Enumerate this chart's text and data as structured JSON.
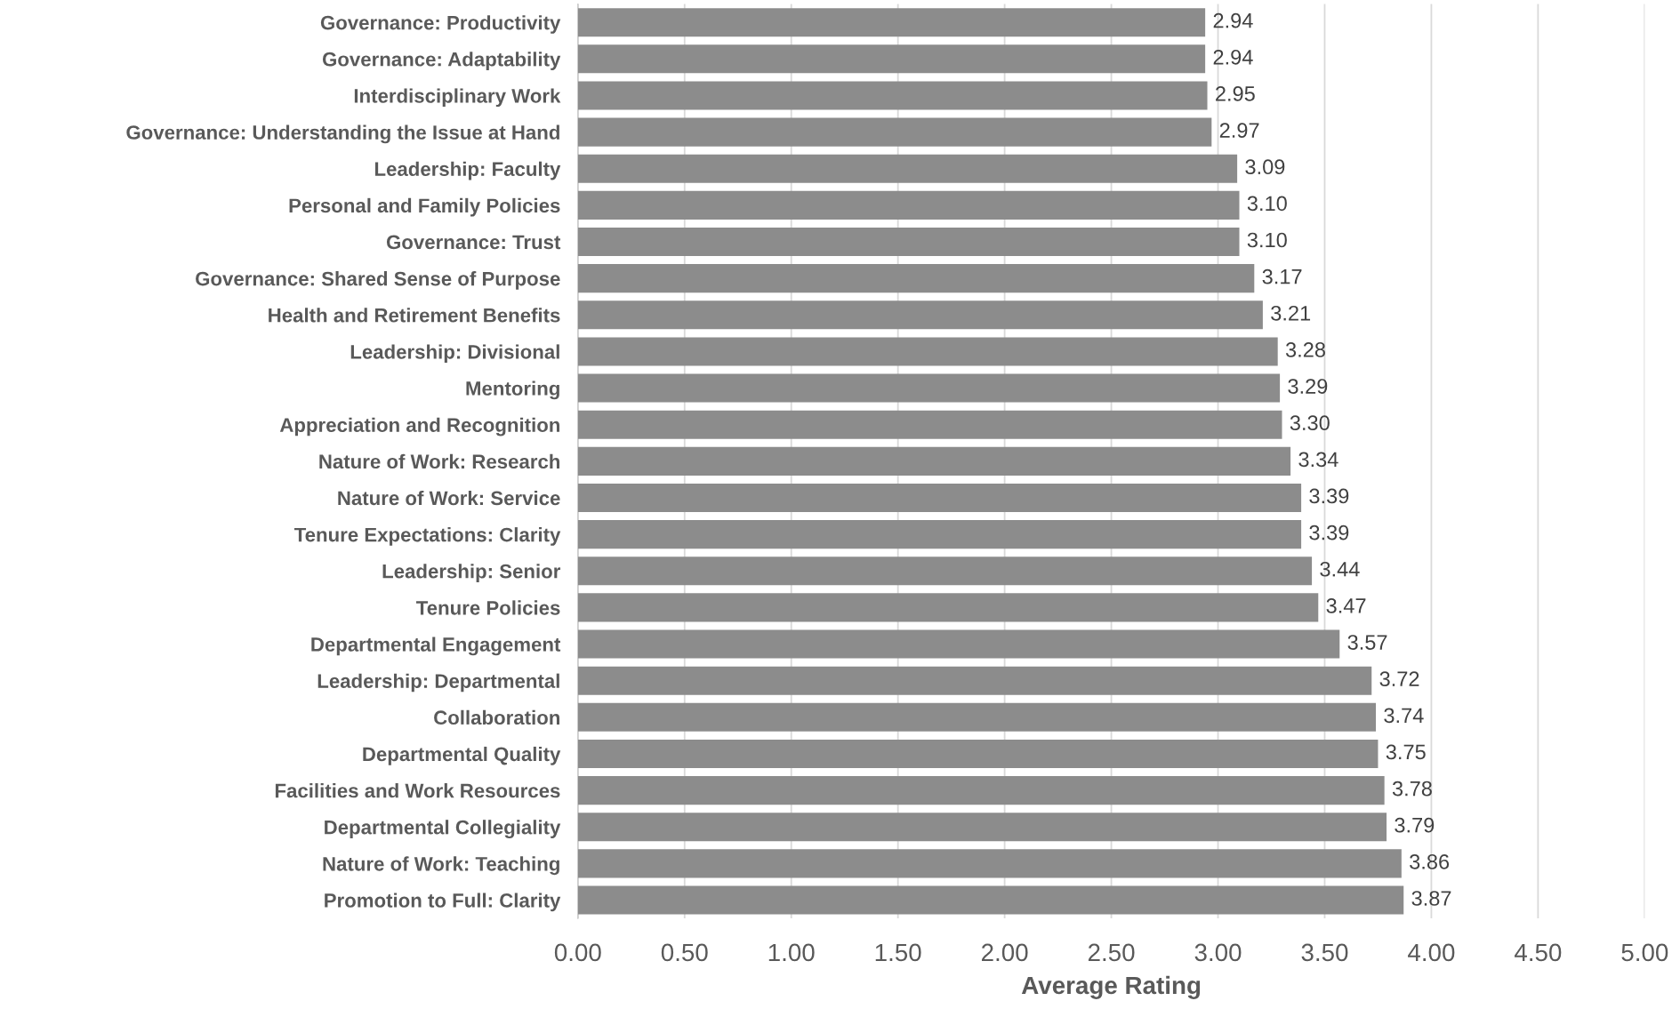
{
  "chart_data": {
    "type": "bar",
    "orientation": "horizontal",
    "xlabel": "Average Rating",
    "categories": [
      "Governance: Productivity",
      "Governance: Adaptability",
      "Interdisciplinary Work",
      "Governance: Understanding the Issue at Hand",
      "Leadership: Faculty",
      "Personal and Family Policies",
      "Governance: Trust",
      "Governance: Shared Sense of Purpose",
      "Health and Retirement Benefits",
      "Leadership: Divisional",
      "Mentoring",
      "Appreciation and Recognition",
      "Nature of Work: Research",
      "Nature of Work: Service",
      "Tenure Expectations: Clarity",
      "Leadership: Senior",
      "Tenure Policies",
      "Departmental Engagement",
      "Leadership: Departmental",
      "Collaboration",
      "Departmental Quality",
      "Facilities and Work Resources",
      "Departmental Collegiality",
      "Nature of Work: Teaching",
      "Promotion to Full: Clarity"
    ],
    "values": [
      2.94,
      2.94,
      2.95,
      2.97,
      3.09,
      3.1,
      3.1,
      3.17,
      3.21,
      3.28,
      3.29,
      3.3,
      3.34,
      3.39,
      3.39,
      3.44,
      3.47,
      3.57,
      3.72,
      3.74,
      3.75,
      3.78,
      3.79,
      3.86,
      3.87
    ],
    "value_labels": [
      "2.94",
      "2.94",
      "2.95",
      "2.97",
      "3.09",
      "3.10",
      "3.10",
      "3.17",
      "3.21",
      "3.28",
      "3.29",
      "3.30",
      "3.34",
      "3.39",
      "3.39",
      "3.44",
      "3.47",
      "3.57",
      "3.72",
      "3.74",
      "3.75",
      "3.78",
      "3.79",
      "3.86",
      "3.87"
    ],
    "color": "#8c8c8c",
    "xlim": [
      0,
      5
    ],
    "xticks": [
      {
        "value": 0,
        "label": "0.00"
      },
      {
        "value": 0.5,
        "label": "0.50"
      },
      {
        "value": 1,
        "label": "1.00"
      },
      {
        "value": 1.5,
        "label": "1.50"
      },
      {
        "value": 2,
        "label": "2.00"
      },
      {
        "value": 2.5,
        "label": "2.50"
      },
      {
        "value": 3,
        "label": "3.00"
      },
      {
        "value": 3.5,
        "label": "3.50"
      },
      {
        "value": 4,
        "label": "4.00"
      },
      {
        "value": 4.5,
        "label": "4.50"
      },
      {
        "value": 5,
        "label": "5.00"
      }
    ],
    "grid": "x"
  }
}
